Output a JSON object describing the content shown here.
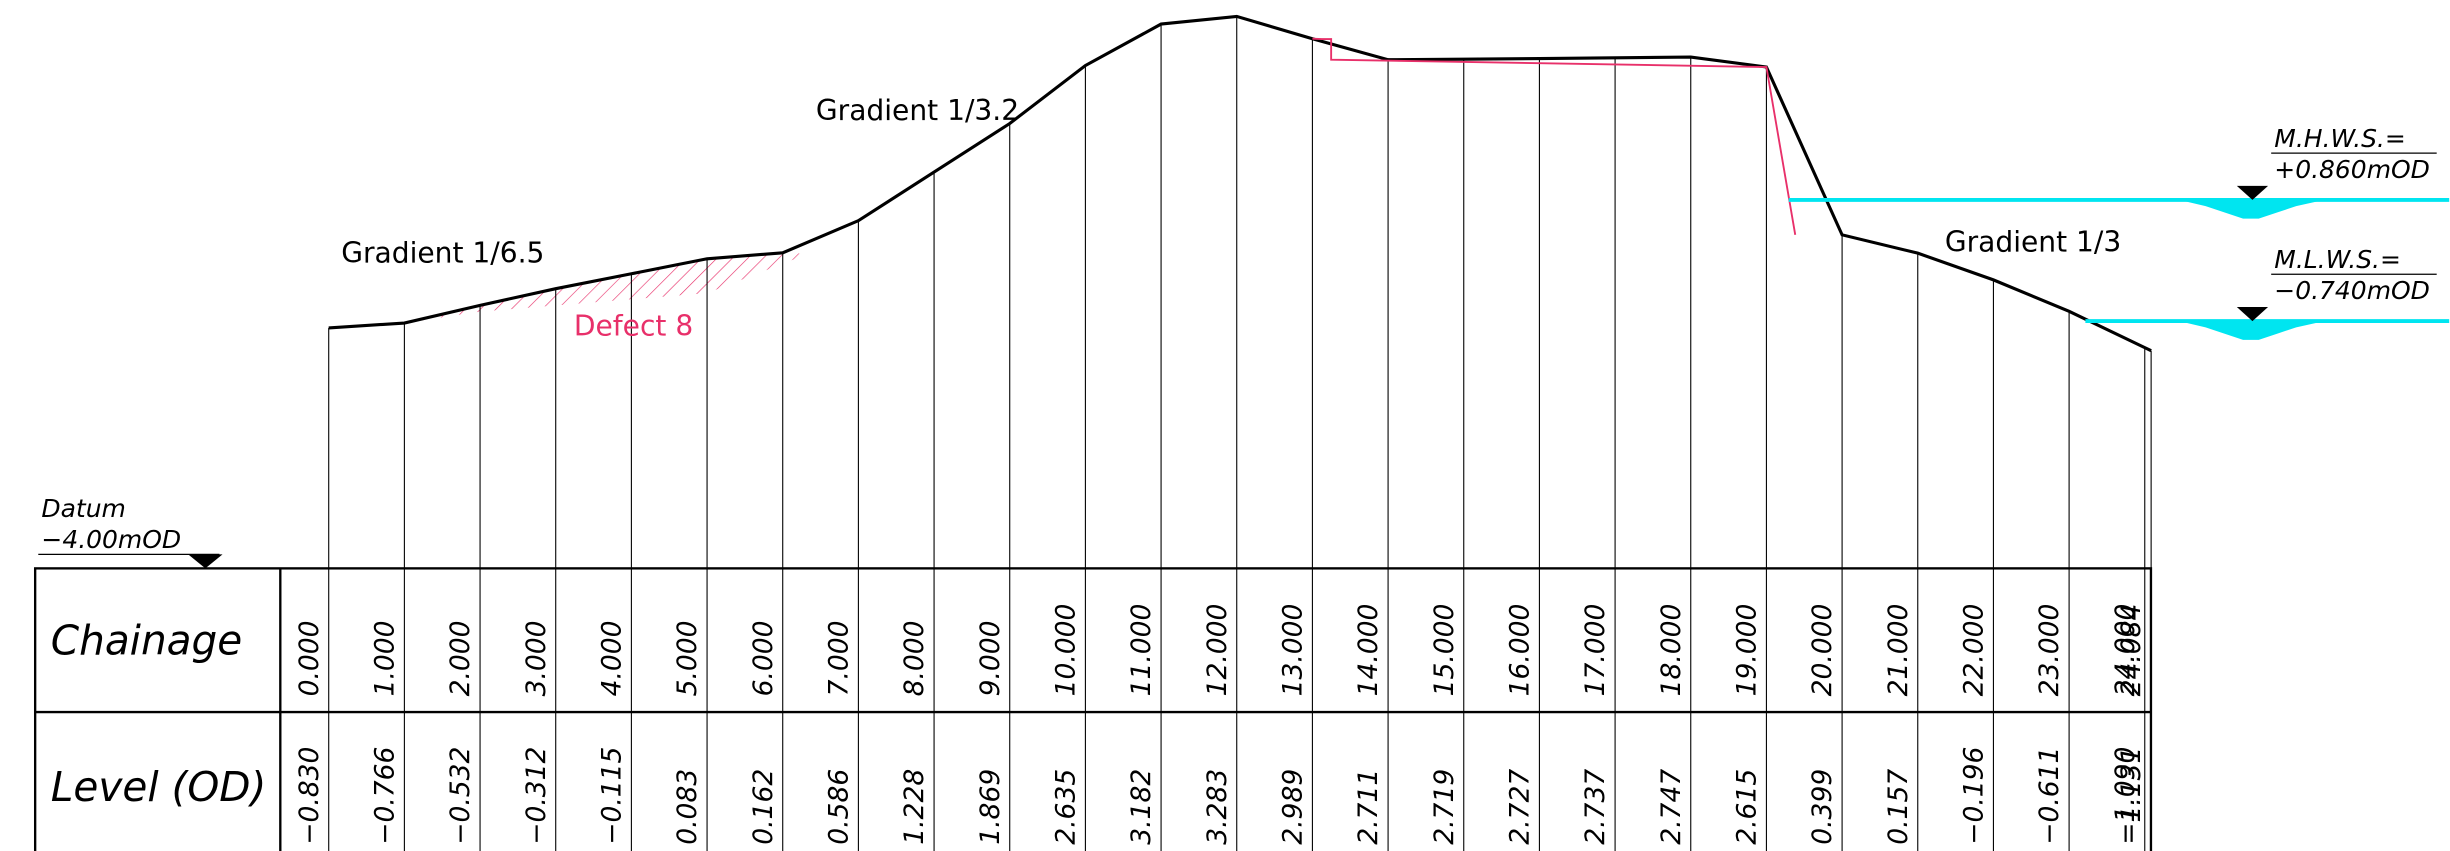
{
  "datum": {
    "label": "Datum",
    "level": "−4.00mOD"
  },
  "annotations": [
    "Gradient 1/6.5",
    "Gradient 1/3.2",
    "Gradient 1/3"
  ],
  "defect": "Defect 8",
  "water_levels": [
    {
      "label": "M.H.W.S.=",
      "level": "+0.860mOD"
    },
    {
      "label": "M.L.W.S.=",
      "level": "−0.740mOD"
    }
  ],
  "table": {
    "row_headers": [
      "Chainage",
      "Level (OD)"
    ],
    "chainage": [
      "0.000",
      "1.000",
      "2.000",
      "3.000",
      "4.000",
      "5.000",
      "6.000",
      "7.000",
      "8.000",
      "9.000",
      "10.000",
      "11.000",
      "12.000",
      "13.000",
      "14.000",
      "15.000",
      "16.000",
      "17.000",
      "18.000",
      "19.000",
      "20.000",
      "21.000",
      "22.000",
      "23.000",
      "24.000",
      "24.084"
    ],
    "level": [
      "−0.830",
      "−0.766",
      "−0.532",
      "−0.312",
      "−0.115",
      "0.083",
      "0.162",
      "0.586",
      "1.228",
      "1.869",
      "2.635",
      "3.182",
      "3.283",
      "2.989",
      "2.711",
      "2.719",
      "2.727",
      "2.737",
      "2.747",
      "2.615",
      "0.399",
      "0.157",
      "−0.196",
      "−0.611",
      "−1.090",
      "−1.131"
    ]
  }
}
